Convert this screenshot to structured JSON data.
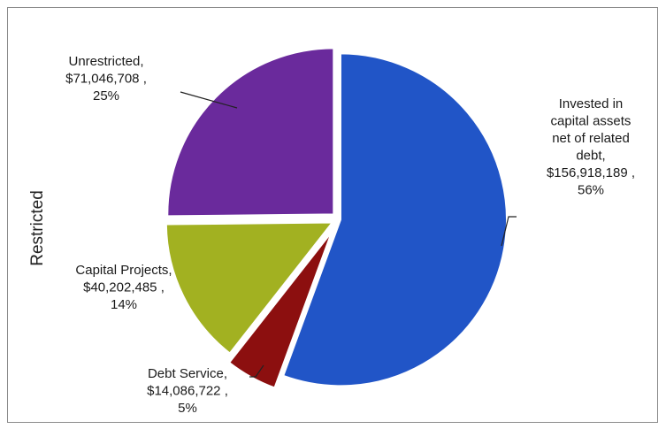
{
  "chart_data": {
    "type": "pie",
    "side_label": "Restricted",
    "slices": [
      {
        "name": "Invested in capital assets net of related debt",
        "value": 156918189,
        "percent": 56,
        "color": "#2155c7",
        "label_lines": [
          "Invested in",
          "capital assets",
          "net of related",
          "debt,",
          "$156,918,189 ,",
          "56%"
        ]
      },
      {
        "name": "Debt Service",
        "value": 14086722,
        "percent": 5,
        "color": "#8c0f0f",
        "label_lines": [
          "Debt Service,",
          "$14,086,722 ,",
          "5%"
        ]
      },
      {
        "name": "Capital Projects",
        "value": 40202485,
        "percent": 14,
        "color": "#a2b121",
        "label_lines": [
          "Capital Projects,",
          "$40,202,485 ,",
          "14%"
        ]
      },
      {
        "name": "Unrestricted",
        "value": 71046708,
        "percent": 25,
        "color": "#6a2a9c",
        "label_lines": [
          "Unrestricted,",
          "$71,046,708 ,",
          "25%"
        ]
      }
    ]
  }
}
